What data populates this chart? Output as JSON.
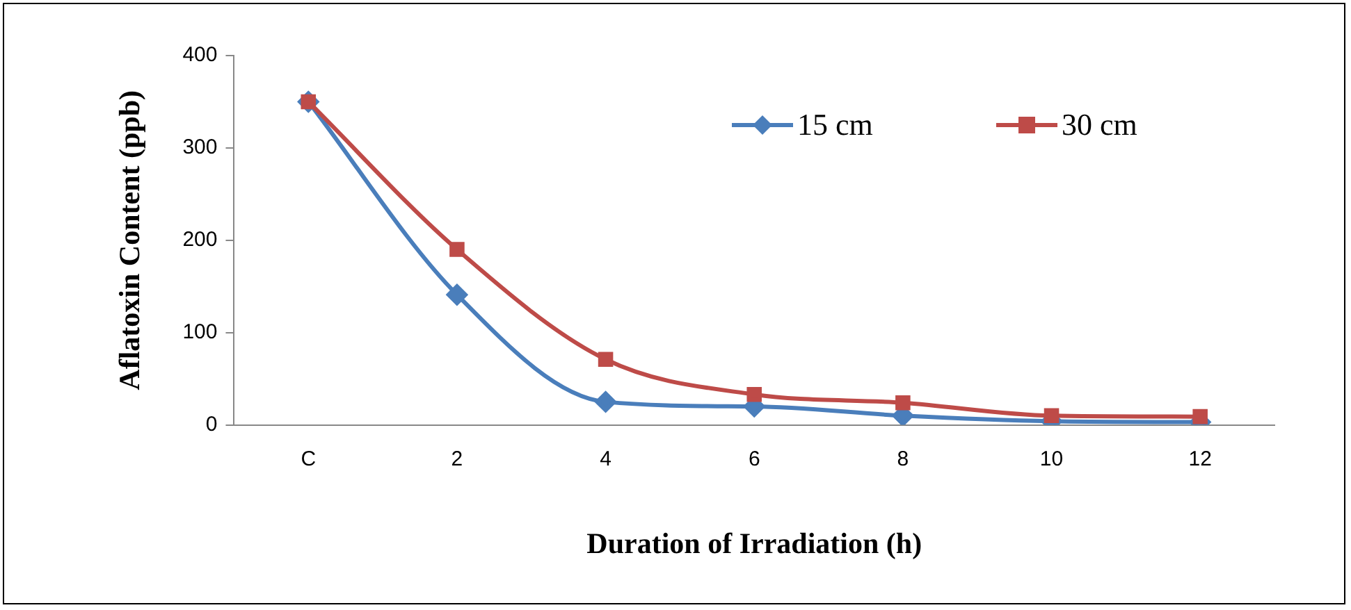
{
  "chart_data": {
    "type": "line",
    "xlabel": "Duration of Irradiation (h)",
    "ylabel": "Aflatoxin Content (ppb)",
    "categories": [
      "C",
      "2",
      "4",
      "6",
      "8",
      "10",
      "12"
    ],
    "series": [
      {
        "name": "15 cm",
        "color": "#4a7ebb",
        "marker": "diamond",
        "values": [
          350,
          141,
          25,
          20,
          10,
          4,
          3
        ]
      },
      {
        "name": "30 cm",
        "color": "#be4b48",
        "marker": "square",
        "values": [
          350,
          190,
          71,
          33,
          24,
          10,
          9
        ]
      }
    ],
    "ylim": [
      0,
      400
    ],
    "yticks": [
      0,
      100,
      200,
      300,
      400
    ],
    "grid": false,
    "legend": "top right"
  }
}
